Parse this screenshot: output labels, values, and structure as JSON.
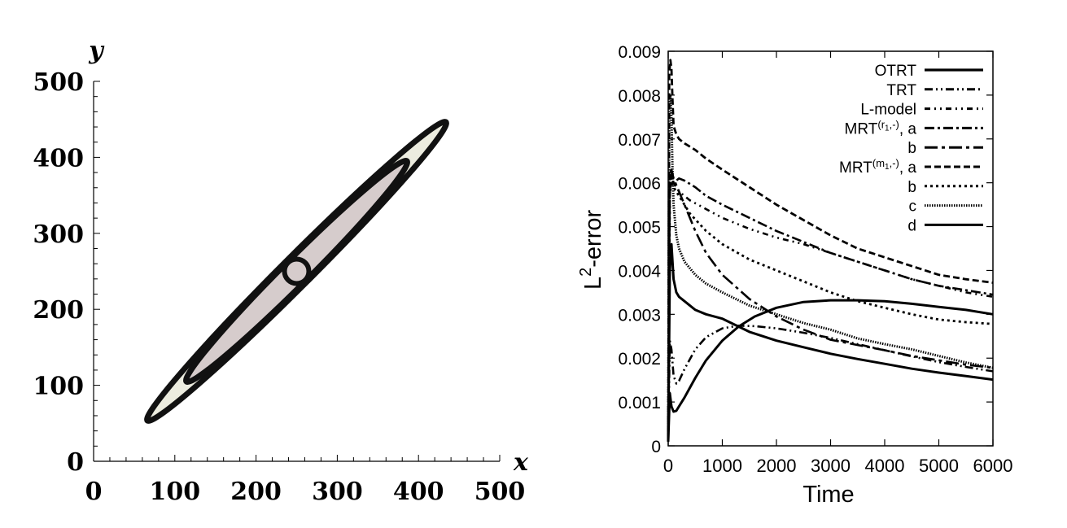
{
  "chart_data": [
    {
      "type": "contour",
      "title": "",
      "xlabel": "x",
      "ylabel": "y",
      "xlim": [
        0,
        500
      ],
      "ylim": [
        0,
        500
      ],
      "xticks": [
        "0",
        "100",
        "200",
        "300",
        "400",
        "500"
      ],
      "yticks": [
        "0",
        "100",
        "200",
        "300",
        "400",
        "500"
      ],
      "minor_ticks_per_major": 5,
      "colors": {
        "outer_fill": "#ececdf",
        "inner_fill": "#d6cccc",
        "contour": "#111111"
      },
      "contours": [
        {
          "name": "outer",
          "center": [
            250,
            250
          ],
          "rotation_deg": 45,
          "major_half": 260,
          "minor_half": 18
        },
        {
          "name": "inner",
          "center": [
            250,
            250
          ],
          "rotation_deg": 45,
          "major_half": 192,
          "minor_half": 16
        },
        {
          "name": "core",
          "center": [
            250,
            250
          ],
          "rotation_deg": 0,
          "major_half": 15,
          "minor_half": 15
        }
      ]
    },
    {
      "type": "line",
      "title": "",
      "xlabel": "Time",
      "ylabel_base": "L",
      "ylabel_sup": "2",
      "ylabel_rest": "-error",
      "xlim": [
        0,
        6000
      ],
      "ylim": [
        0,
        0.009
      ],
      "xticks": [
        "0",
        "1000",
        "2000",
        "3000",
        "4000",
        "5000",
        "6000"
      ],
      "yticks": [
        "0",
        "0.001",
        "0.002",
        "0.003",
        "0.004",
        "0.005",
        "0.006",
        "0.007",
        "0.008",
        "0.009"
      ],
      "legend_position": "top-right",
      "legend": [
        {
          "parts": [
            {
              "t": "OTRT"
            }
          ],
          "dash": "solid",
          "width": 3.2
        },
        {
          "parts": [
            {
              "t": "TRT"
            }
          ],
          "dash": "dash-dot-dot",
          "width": 3.0
        },
        {
          "parts": [
            {
              "t": "L-model"
            }
          ],
          "dash": "dash-dot-dot-wide",
          "width": 3.0
        },
        {
          "parts": [
            {
              "t": "MRT"
            },
            {
              "sup": "(r"
            },
            {
              "subsup": "1"
            },
            {
              "sup": ",-)"
            },
            {
              "t": ",  a"
            }
          ],
          "dash": "dash-dot",
          "width": 3.0
        },
        {
          "parts": [
            {
              "t": "b"
            }
          ],
          "dash": "long-dash-dot",
          "width": 3.0
        },
        {
          "parts": [
            {
              "t": "MRT"
            },
            {
              "sup": "(m"
            },
            {
              "subsup": "1"
            },
            {
              "sup": ",-)"
            },
            {
              "t": ", a"
            }
          ],
          "dash": "dashed",
          "width": 3.0
        },
        {
          "parts": [
            {
              "t": "b"
            }
          ],
          "dash": "dotted",
          "width": 3.0
        },
        {
          "parts": [
            {
              "t": "c"
            }
          ],
          "dash": "dense-dotted",
          "width": 3.0
        },
        {
          "parts": [
            {
              "t": "d"
            }
          ],
          "dash": "solid",
          "width": 3.0
        }
      ],
      "series": [
        {
          "dash": "solid",
          "width": 3.0,
          "x": [
            0,
            30,
            60,
            100,
            150,
            200,
            300,
            500,
            700,
            1000,
            1500,
            2000,
            2500,
            3000,
            3500,
            4000,
            4500,
            5000,
            5500,
            6000
          ],
          "y": [
            0.0001,
            0.004,
            0.0046,
            0.0038,
            0.0035,
            0.0034,
            0.0033,
            0.0031,
            0.003,
            0.0029,
            0.0026,
            0.0024,
            0.00225,
            0.0021,
            0.00198,
            0.00187,
            0.00176,
            0.00167,
            0.00159,
            0.00151
          ]
        },
        {
          "dash": "dash-dot-dot",
          "width": 2.6,
          "x": [
            0,
            30,
            60,
            100,
            150,
            200,
            300,
            500,
            700,
            1000,
            1300,
            1600,
            2000,
            2500,
            3000,
            3500,
            4000,
            4500,
            5000,
            5500,
            6000
          ],
          "y": [
            0.0001,
            0.0024,
            0.0022,
            0.0016,
            0.00142,
            0.00148,
            0.00175,
            0.0022,
            0.00248,
            0.00268,
            0.00274,
            0.00273,
            0.00268,
            0.00258,
            0.00246,
            0.00232,
            0.00218,
            0.00204,
            0.00191,
            0.0018,
            0.0017
          ]
        },
        {
          "dash": "dash-dot-dot-wide",
          "width": 2.6,
          "x": [
            0,
            30,
            60,
            100,
            200,
            400,
            700,
            1000,
            1500,
            2000,
            2500,
            3000,
            3500,
            4000,
            4500,
            5000,
            5500,
            6000
          ],
          "y": [
            0.0001,
            0.0057,
            0.0062,
            0.006,
            0.0058,
            0.0056,
            0.0054,
            0.0052,
            0.00495,
            0.00475,
            0.0046,
            0.0044,
            0.0042,
            0.004,
            0.0038,
            0.00365,
            0.0035,
            0.0034
          ]
        },
        {
          "dash": "dash-dot",
          "width": 2.6,
          "x": [
            0,
            30,
            60,
            100,
            200,
            300,
            500,
            700,
            1000,
            1500,
            2000,
            2500,
            3000,
            3500,
            4000,
            4500,
            5000,
            5500,
            6000
          ],
          "y": [
            0.0001,
            0.0061,
            0.0062,
            0.006,
            0.0061,
            0.00605,
            0.0059,
            0.0057,
            0.0055,
            0.0052,
            0.0049,
            0.00465,
            0.0044,
            0.0042,
            0.004,
            0.0038,
            0.00365,
            0.00355,
            0.00345
          ]
        },
        {
          "dash": "long-dash-dot",
          "width": 2.6,
          "x": [
            0,
            30,
            60,
            100,
            200,
            300,
            500,
            700,
            1000,
            1500,
            2000,
            2500,
            3000,
            3500,
            4000,
            4500,
            5000,
            5500,
            6000
          ],
          "y": [
            0.0001,
            0.0062,
            0.0063,
            0.0061,
            0.0058,
            0.0055,
            0.0049,
            0.0044,
            0.0039,
            0.00335,
            0.00295,
            0.00265,
            0.00242,
            0.0023,
            0.00218,
            0.00205,
            0.00195,
            0.00185,
            0.00178
          ]
        },
        {
          "dash": "dashed",
          "width": 2.8,
          "x": [
            0,
            20,
            40,
            60,
            80,
            100,
            150,
            200,
            300,
            500,
            700,
            1000,
            1500,
            2000,
            2500,
            3000,
            3500,
            4000,
            4500,
            5000,
            5500,
            6000
          ],
          "y": [
            0.0001,
            0.0085,
            0.0088,
            0.0086,
            0.0079,
            0.0073,
            0.0071,
            0.007,
            0.0069,
            0.00675,
            0.00655,
            0.0063,
            0.0059,
            0.0055,
            0.00515,
            0.0048,
            0.0045,
            0.0043,
            0.0041,
            0.0039,
            0.0038,
            0.00372
          ]
        },
        {
          "dash": "dotted",
          "width": 2.8,
          "x": [
            0,
            30,
            60,
            100,
            200,
            400,
            700,
            1000,
            1500,
            2000,
            2500,
            3000,
            3500,
            4000,
            4500,
            5000,
            5500,
            6000
          ],
          "y": [
            0.0001,
            0.0057,
            0.0061,
            0.0059,
            0.0057,
            0.0053,
            0.0049,
            0.0046,
            0.00425,
            0.004,
            0.00375,
            0.0035,
            0.0033,
            0.00315,
            0.003,
            0.00288,
            0.00282,
            0.00278
          ]
        },
        {
          "dash": "dense-dotted",
          "width": 3.0,
          "x": [
            0,
            20,
            40,
            60,
            80,
            100,
            150,
            200,
            300,
            500,
            700,
            1000,
            1500,
            2000,
            2500,
            3000,
            3500,
            4000,
            4500,
            5000,
            5500,
            6000
          ],
          "y": [
            0.0001,
            0.0077,
            0.008,
            0.0075,
            0.0063,
            0.0055,
            0.0048,
            0.0045,
            0.0042,
            0.0039,
            0.0037,
            0.0035,
            0.0032,
            0.003,
            0.0028,
            0.00265,
            0.00245,
            0.00232,
            0.0022,
            0.00205,
            0.0019,
            0.00178
          ]
        },
        {
          "dash": "solid",
          "width": 3.0,
          "x": [
            0,
            30,
            60,
            100,
            150,
            200,
            300,
            500,
            700,
            1000,
            1300,
            1600,
            2000,
            2500,
            3000,
            3500,
            4000,
            4500,
            5000,
            5500,
            6000
          ],
          "y": [
            0.0001,
            0.0012,
            0.0009,
            0.00078,
            0.0008,
            0.0009,
            0.0011,
            0.00155,
            0.00195,
            0.0024,
            0.00272,
            0.00295,
            0.00315,
            0.00328,
            0.00332,
            0.00332,
            0.0033,
            0.00324,
            0.00317,
            0.0031,
            0.003
          ]
        }
      ]
    }
  ]
}
